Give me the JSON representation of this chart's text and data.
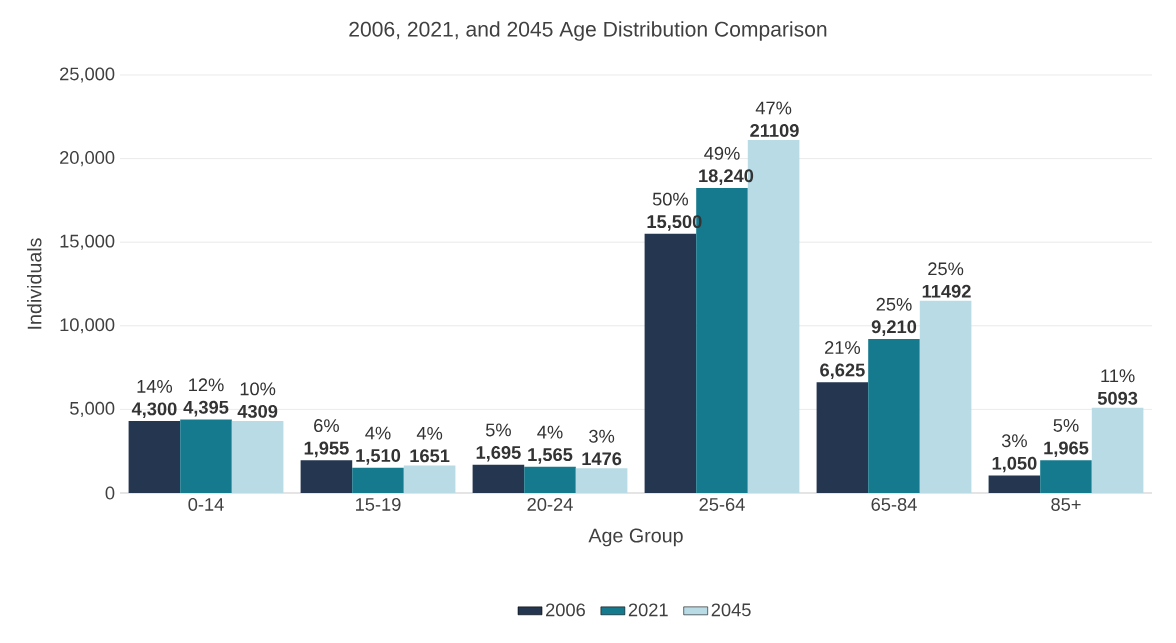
{
  "chart_data": {
    "type": "bar",
    "title": "2006, 2021, and 2045 Age Distribution Comparison",
    "xlabel": "Age Group",
    "ylabel": "Individuals",
    "categories": [
      "0-14",
      "15-19",
      "20-24",
      "25-64",
      "65-84",
      "85+"
    ],
    "series": [
      {
        "name": "2006",
        "color": "#243650",
        "values": [
          4300,
          1955,
          1695,
          15500,
          6625,
          1050
        ],
        "value_labels": [
          "14% **4,300**",
          "6% **1,955**",
          "5% **1,695**",
          "50% **15,500**",
          "21% **6,625**",
          "3% **1,050**"
        ]
      },
      {
        "name": "2021",
        "color": "#167a8e",
        "values": [
          4395,
          1510,
          1565,
          18240,
          9210,
          1965
        ],
        "value_labels": [
          "12% **4,395**",
          "4% **1,510**",
          "4% **1,565**",
          "49% **18,240**",
          "25% **9,210**",
          "5% **1,965**"
        ]
      },
      {
        "name": "2045",
        "color": "#b8dbe6",
        "values": [
          4309,
          1651,
          1476,
          21109,
          11492,
          5093
        ],
        "value_labels": [
          "10% **4309**",
          "4% **1651**",
          "3% **1476**",
          "47% **21109**",
          "25% **11492**",
          "11% **5093**"
        ]
      }
    ],
    "ylim": [
      0,
      25000
    ],
    "yticks": [
      0,
      {
        "value": 5000,
        "label": "5,000"
      },
      {
        "value": 10000,
        "label": "10,000"
      },
      {
        "value": 15000,
        "label": "15,000"
      },
      {
        "value": 20000,
        "label": "20,000"
      },
      {
        "value": 25000,
        "label": "25,000"
      }
    ],
    "grid": "y",
    "legend": "bottom"
  }
}
